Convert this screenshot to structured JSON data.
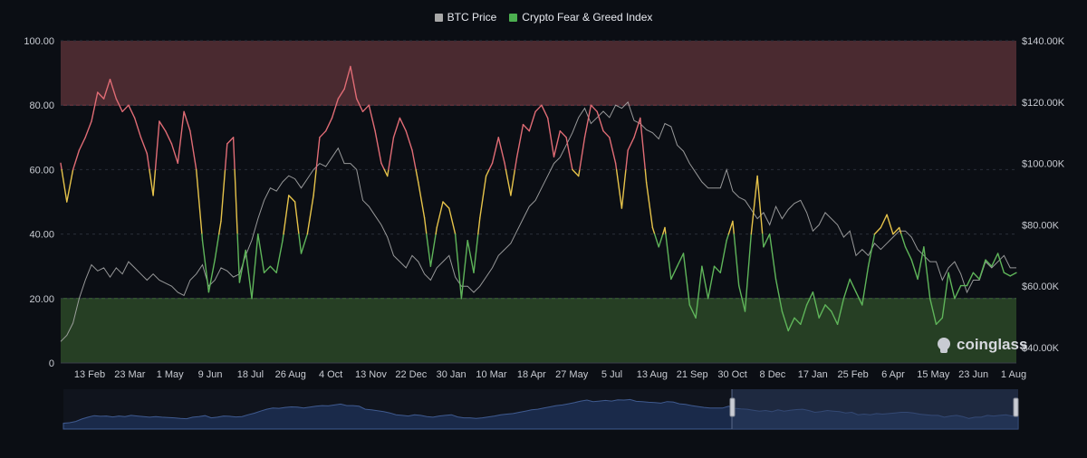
{
  "legend": {
    "items": [
      {
        "label": "BTC Price",
        "color": "#a8a8a8"
      },
      {
        "label": "Crypto Fear & Greed Index",
        "color": "#4caf50"
      }
    ]
  },
  "watermark": "coinglass",
  "colors": {
    "background": "#0b0e14",
    "greed_zone": "#4a2a30",
    "fear_zone": "#263f24",
    "extreme": "#e06c75",
    "mid": "#e6c34a",
    "fear": "#5fb55a",
    "price": "#b0b0b0",
    "navigator_fill": "#1a2a4a",
    "navigator_line": "#3f5a8f",
    "navigator_selection": "#2a3a5c"
  },
  "chart_data": {
    "type": "line",
    "x_tick_labels": [
      "13 Feb",
      "23 Mar",
      "1 May",
      "9 Jun",
      "18 Jul",
      "26 Aug",
      "4 Oct",
      "13 Nov",
      "22 Dec",
      "30 Jan",
      "10 Mar",
      "18 Apr",
      "27 May",
      "5 Jul",
      "13 Aug",
      "21 Sep",
      "30 Oct",
      "8 Dec",
      "17 Jan",
      "25 Feb",
      "6 Apr",
      "15 May",
      "23 Jun",
      "1 Aug"
    ],
    "y_left": {
      "ticks": [
        "100.00",
        "80.00",
        "60.00",
        "40.00",
        "20.00",
        "0"
      ],
      "range": [
        0,
        100
      ]
    },
    "y_right": {
      "ticks": [
        "$140.00K",
        "$120.00K",
        "$100.00K",
        "$80.00K",
        "$60.00K",
        "$40.00K"
      ],
      "range": [
        35,
        140
      ],
      "unit": "K USD"
    },
    "zones": [
      {
        "from": 80,
        "to": 100,
        "label": "greed"
      },
      {
        "from": 0,
        "to": 20,
        "label": "fear"
      }
    ],
    "series": [
      {
        "name": "BTC Price",
        "axis": "right",
        "values": [
          42,
          44,
          48,
          56,
          62,
          67,
          65,
          66,
          63,
          66,
          64,
          68,
          66,
          64,
          62,
          64,
          62,
          61,
          60,
          58,
          57,
          62,
          64,
          67,
          60,
          62,
          66,
          65,
          63,
          64,
          70,
          75,
          82,
          88,
          92,
          91,
          94,
          96,
          95,
          92,
          95,
          98,
          100,
          99,
          102,
          105,
          100,
          100,
          98,
          88,
          86,
          83,
          80,
          76,
          70,
          68,
          66,
          70,
          68,
          64,
          62,
          66,
          68,
          70,
          63,
          60,
          60,
          58,
          60,
          63,
          66,
          70,
          72,
          74,
          78,
          82,
          86,
          88,
          92,
          96,
          100,
          102,
          106,
          110,
          115,
          118,
          113,
          115,
          117,
          115,
          119,
          118,
          120,
          114,
          113,
          111,
          110,
          108,
          113,
          112,
          106,
          104,
          100,
          97,
          94,
          92,
          92,
          92,
          98,
          91,
          89,
          88,
          85,
          82,
          84,
          80,
          86,
          82,
          85,
          87,
          88,
          84,
          78,
          80,
          84,
          82,
          80,
          76,
          78,
          70,
          72,
          70,
          74,
          72,
          74,
          76,
          78,
          78,
          76,
          72,
          70,
          68,
          68,
          62,
          66,
          68,
          64,
          58,
          62,
          62,
          68,
          66,
          68,
          70,
          66,
          66
        ]
      },
      {
        "name": "Crypto Fear & Greed Index",
        "axis": "left",
        "values": [
          62,
          50,
          60,
          66,
          70,
          75,
          84,
          82,
          88,
          82,
          78,
          80,
          76,
          70,
          65,
          52,
          75,
          72,
          68,
          62,
          78,
          72,
          60,
          38,
          22,
          32,
          44,
          68,
          70,
          25,
          35,
          20,
          40,
          28,
          30,
          28,
          38,
          52,
          50,
          34,
          40,
          52,
          70,
          72,
          76,
          82,
          85,
          92,
          82,
          78,
          80,
          72,
          62,
          58,
          70,
          76,
          72,
          66,
          56,
          45,
          30,
          42,
          50,
          48,
          40,
          20,
          38,
          28,
          45,
          58,
          62,
          70,
          62,
          52,
          64,
          74,
          72,
          78,
          80,
          76,
          64,
          72,
          70,
          60,
          58,
          70,
          80,
          78,
          72,
          70,
          62,
          48,
          66,
          70,
          76,
          56,
          42,
          36,
          42,
          26,
          30,
          34,
          18,
          14,
          30,
          20,
          30,
          28,
          38,
          44,
          24,
          16,
          40,
          58,
          36,
          40,
          26,
          16,
          10,
          14,
          12,
          18,
          22,
          14,
          18,
          16,
          12,
          20,
          26,
          22,
          18,
          30,
          40,
          42,
          46,
          40,
          42,
          36,
          32,
          26,
          36,
          20,
          12,
          14,
          28,
          20,
          24,
          24,
          28,
          26,
          32,
          30,
          34,
          28,
          27,
          28
        ]
      }
    ]
  }
}
